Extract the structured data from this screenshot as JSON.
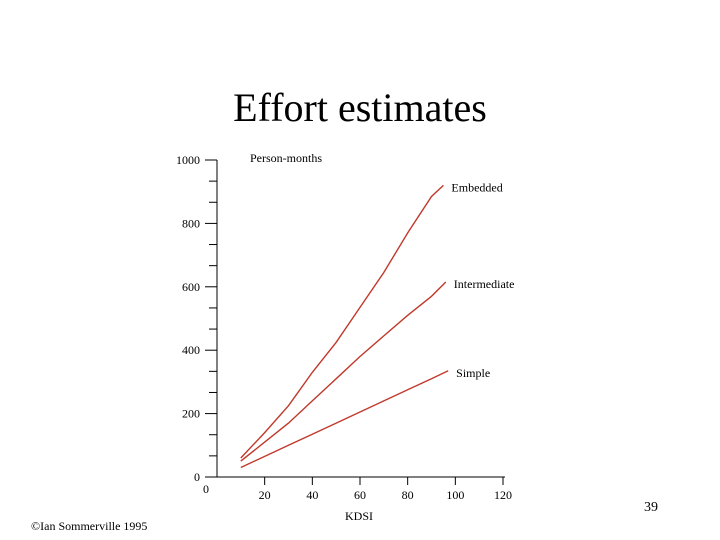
{
  "slide": {
    "title": "Effort estimates",
    "number": "39",
    "footer": "©Ian Sommerville 1995"
  },
  "chart_data": {
    "type": "line",
    "ylabel": "Person-months",
    "xlabel": "KDSI",
    "xlim": [
      0,
      120
    ],
    "ylim": [
      0,
      1000
    ],
    "x_ticks": [
      20,
      40,
      60,
      80,
      100,
      120
    ],
    "x_origin_label": "0",
    "y_ticks": [
      0,
      200,
      400,
      600,
      800,
      1000
    ],
    "grid": false,
    "line_color": "#c0392b",
    "series": [
      {
        "name": "Embedded",
        "x": [
          10,
          20,
          30,
          40,
          50,
          60,
          70,
          80,
          90,
          95
        ],
        "y": [
          60,
          140,
          225,
          330,
          425,
          535,
          645,
          770,
          885,
          920
        ]
      },
      {
        "name": "Intermediate",
        "x": [
          10,
          20,
          30,
          40,
          50,
          60,
          70,
          80,
          90,
          96
        ],
        "y": [
          50,
          110,
          170,
          240,
          310,
          380,
          445,
          510,
          570,
          615
        ]
      },
      {
        "name": "Simple",
        "x": [
          10,
          20,
          30,
          40,
          50,
          60,
          70,
          80,
          90,
          97
        ],
        "y": [
          30,
          65,
          100,
          135,
          170,
          205,
          240,
          275,
          310,
          335
        ]
      }
    ]
  }
}
